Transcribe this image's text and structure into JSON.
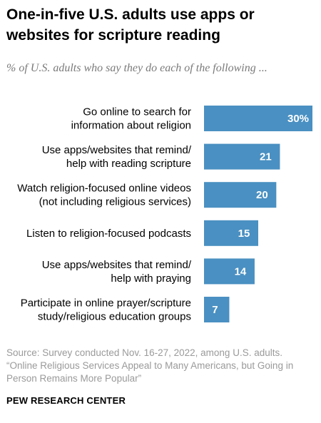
{
  "header": {
    "title": "One-in-five U.S. adults use apps or websites for scripture reading",
    "subtitle": "% of U.S. adults who say they do each of the following ..."
  },
  "chart_data": {
    "type": "bar",
    "orientation": "horizontal",
    "title": "One-in-five U.S. adults use apps or websites for scripture reading",
    "subtitle": "% of U.S. adults who say they do each of the following ...",
    "categories": [
      [
        "Go online to search for",
        "information about religion"
      ],
      [
        "Use apps/websites that remind/",
        "help with reading scripture"
      ],
      [
        "Watch religion-focused online videos",
        "(not including religious services)"
      ],
      [
        "Listen to religion-focused podcasts"
      ],
      [
        "Use apps/websites that remind/",
        "help with praying"
      ],
      [
        "Participate in online prayer/scripture",
        "study/religious education groups"
      ]
    ],
    "values": [
      30,
      21,
      20,
      15,
      14,
      7
    ],
    "value_labels": [
      "30%",
      "21",
      "20",
      "15",
      "14",
      "7"
    ],
    "xlim": [
      0,
      30
    ],
    "bar_color": "#4a90c2",
    "grid": false,
    "legend": "none"
  },
  "footer": {
    "source_lines": [
      "Source: Survey conducted Nov. 16-27, 2022, among U.S. adults.",
      "“Online Religious Services Appeal to Many Americans, but Going in",
      "Person Remains More Popular”"
    ],
    "brand": "PEW RESEARCH CENTER"
  }
}
